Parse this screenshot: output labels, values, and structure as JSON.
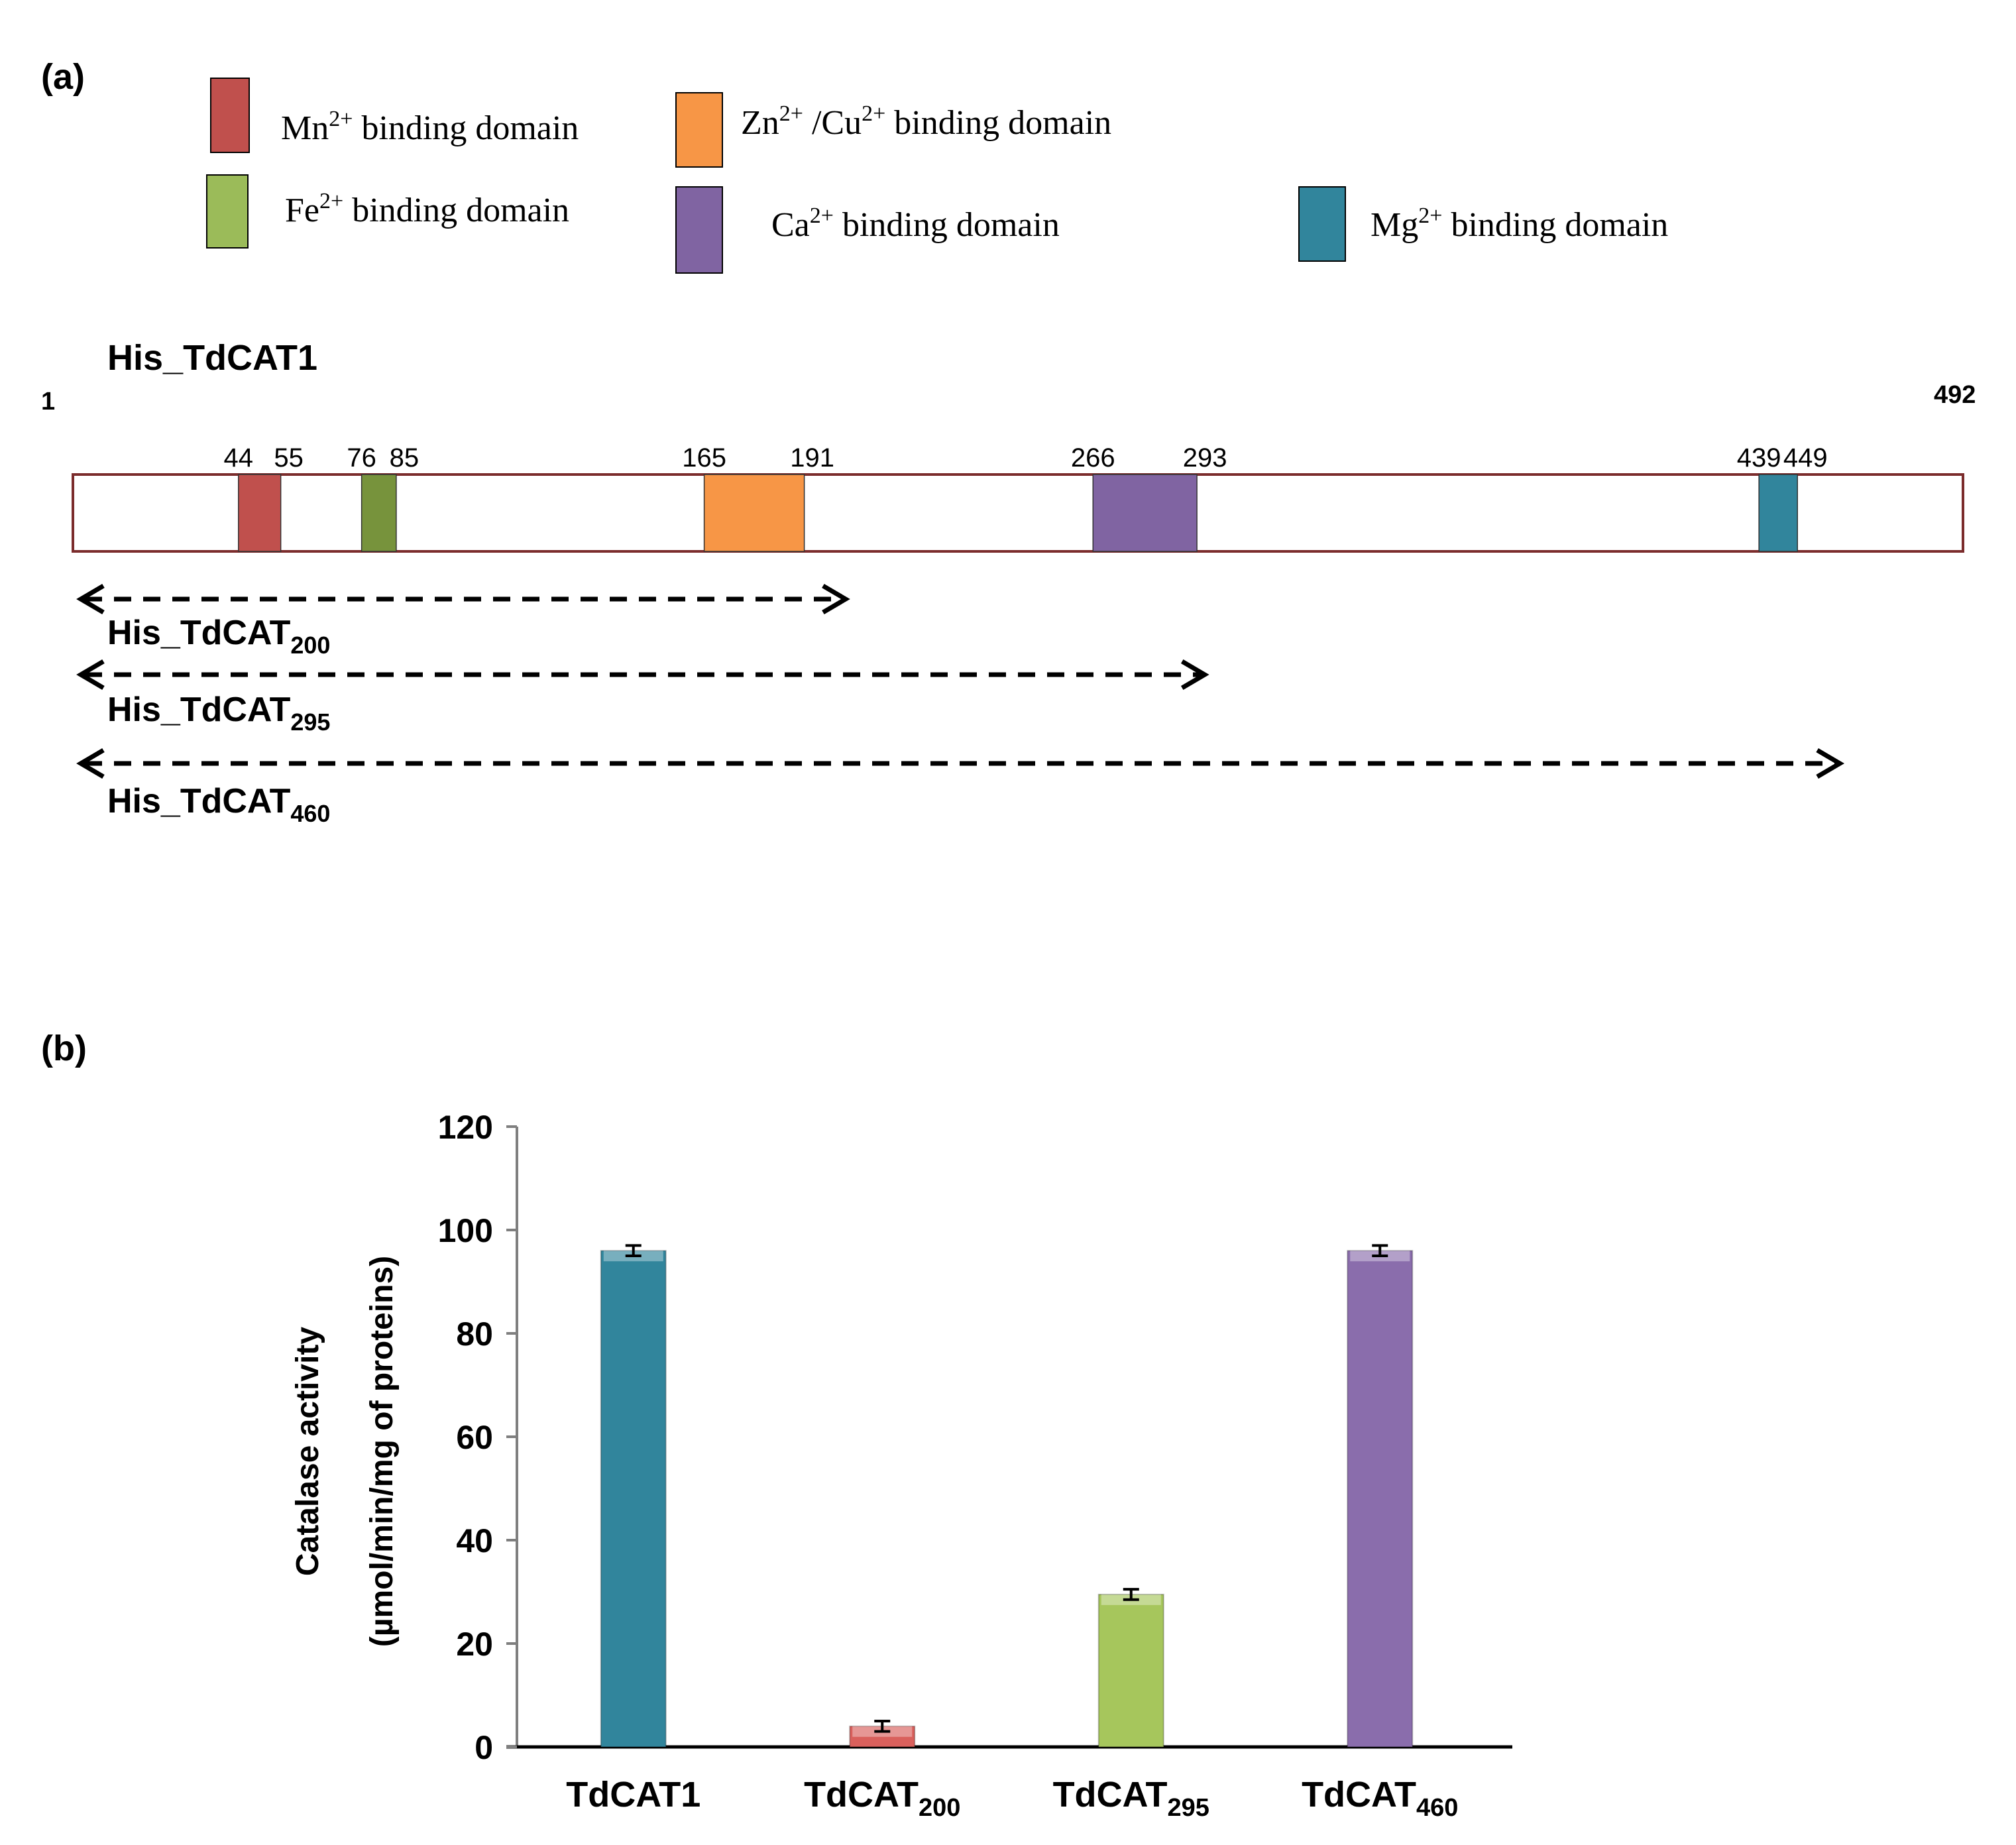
{
  "panel_a": {
    "label": "(a)",
    "legend": [
      {
        "ion": "Mn",
        "charge": "2+",
        "text": " binding domain",
        "color": "#c0504d"
      },
      {
        "ion": "Zn",
        "charge": "2+",
        "text": " /Cu",
        "charge2": "2+",
        "text2": " binding domain",
        "color": "#f79646"
      },
      {
        "ion": "Fe",
        "charge": "2+",
        "text": " binding domain",
        "color": "#9bbb59"
      },
      {
        "ion": "Ca",
        "charge": "2+",
        "text": " binding domain",
        "color": "#8064a2"
      },
      {
        "ion": "Mg",
        "charge": "2+",
        "text": " binding domain",
        "color": "#31859c"
      }
    ],
    "protein_name": "His_TdCAT1",
    "length_start": "1",
    "length_end": "492",
    "domains": [
      {
        "start": 44,
        "end": 55,
        "color": "#c0504d"
      },
      {
        "start": 76,
        "end": 85,
        "color": "#77933c"
      },
      {
        "start": 165,
        "end": 191,
        "color": "#f79646"
      },
      {
        "start": 266,
        "end": 293,
        "color": "#8064a2"
      },
      {
        "start": 439,
        "end": 449,
        "color": "#31859c"
      }
    ],
    "constructs": [
      {
        "base": "His_TdCAT",
        "sub": "200",
        "end": 200
      },
      {
        "base": "His_TdCAT",
        "sub": "295",
        "end": 295
      },
      {
        "base": "His_TdCAT",
        "sub": "460",
        "end": 460
      }
    ]
  },
  "panel_b": {
    "label": "(b)",
    "ylabel_line1": "Catalase activity",
    "ylabel_line2": "(µmol/min/mg of proteins)"
  },
  "chart_data": {
    "type": "bar",
    "categories": [
      "TdCAT1",
      "TdCAT200",
      "TdCAT295",
      "TdCAT460"
    ],
    "category_labels": [
      {
        "base": "TdCAT1",
        "sub": ""
      },
      {
        "base": "TdCAT",
        "sub": "200"
      },
      {
        "base": "TdCAT",
        "sub": "295"
      },
      {
        "base": "TdCAT",
        "sub": "460"
      }
    ],
    "values": [
      96,
      4,
      29.5,
      96
    ],
    "errors": [
      1,
      1,
      1,
      1
    ],
    "colors": [
      "#31859c",
      "#d9605c",
      "#a6c65c",
      "#8a6dac"
    ],
    "ylim": [
      0,
      120
    ],
    "yticks": [
      0,
      20,
      40,
      60,
      80,
      100,
      120
    ],
    "xlabel": "",
    "ylabel": "Catalase activity (µmol/min/mg of proteins)"
  }
}
